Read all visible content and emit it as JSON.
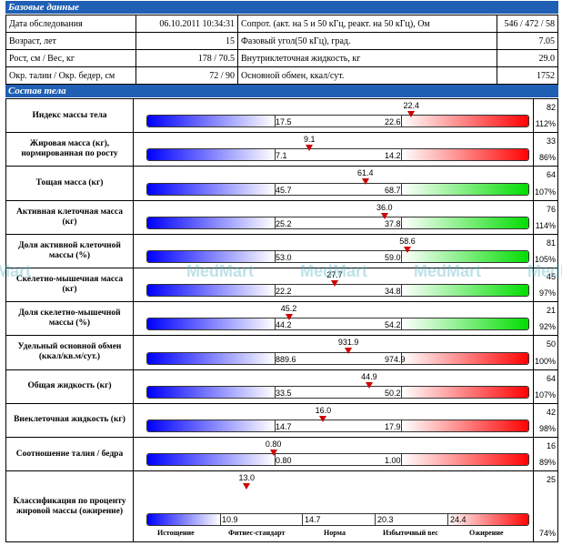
{
  "base_header": "Базовые данные",
  "base": [
    {
      "l1": "Дата обследования",
      "v1": "06.10.2011 10:34:31",
      "l2": "Сопрот. (акт. на 5 и 50 кГц, реакт. на 50 кГц), Ом",
      "v2": "546 / 472 / 58"
    },
    {
      "l1": "Возраст, лет",
      "v1": "15",
      "l2": "Фазовый угол(50 кГц), град.",
      "v2": "7.05"
    },
    {
      "l1": "Рост, см / Вес, кг",
      "v1": "178 / 70.5",
      "l2": "Внутриклеточная жидкость, кг",
      "v2": "29.0"
    },
    {
      "l1": "Окр. талии / Окр. бедер, см",
      "v1": "72 / 90",
      "l2": "Основной обмен, ккал/сут.",
      "v2": "1752"
    }
  ],
  "comp_header": "Состав тела",
  "rows": [
    {
      "label": "Индекс массы тела",
      "value": "22.4",
      "low": "17.5",
      "high": "22.6",
      "n1": "82",
      "n2": "112%",
      "pos": 0.69,
      "color": "red"
    },
    {
      "label": "Жировая масса (кг), нормированная по росту",
      "value": "9.1",
      "low": "7.1",
      "high": "14.2",
      "n1": "33",
      "n2": "86%",
      "pos": 0.43,
      "color": "red"
    },
    {
      "label": "Тощая масса (кг)",
      "value": "61.4",
      "low": "45.7",
      "high": "68.7",
      "n1": "64",
      "n2": "107%",
      "pos": 0.57,
      "color": "green"
    },
    {
      "label": "Активная клеточная масса (кг)",
      "value": "36.0",
      "low": "25.2",
      "high": "37.8",
      "n1": "76",
      "n2": "114%",
      "pos": 0.62,
      "color": "green"
    },
    {
      "label": "Доля активной клеточной массы (%)",
      "value": "58.6",
      "low": "53.0",
      "high": "59.0",
      "n1": "81",
      "n2": "105%",
      "pos": 0.68,
      "color": "green"
    },
    {
      "label": "Скелетно-мышечная масса (кг)",
      "value": "27.7",
      "low": "22.2",
      "high": "34.8",
      "n1": "45",
      "n2": "97%",
      "pos": 0.49,
      "color": "green"
    },
    {
      "label": "Доля скелетно-мышечной массы (%)",
      "value": "45.2",
      "low": "44.2",
      "high": "54.2",
      "n1": "21",
      "n2": "92%",
      "pos": 0.37,
      "color": "green"
    },
    {
      "label": "Удельный основной обмен (ккал/кв.м/сут.)",
      "value": "931.9",
      "low": "889.6",
      "high": "974.9",
      "n1": "50",
      "n2": "100%",
      "pos": 0.52,
      "color": "red"
    },
    {
      "label": "Общая жидкость (кг)",
      "value": "44.9",
      "low": "33.5",
      "high": "50.2",
      "n1": "64",
      "n2": "107%",
      "pos": 0.58,
      "color": "red"
    },
    {
      "label": "Внеклеточная жидкость (кг)",
      "value": "16.0",
      "low": "14.7",
      "high": "17.9",
      "n1": "42",
      "n2": "98%",
      "pos": 0.46,
      "color": "red"
    },
    {
      "label": "Соотношение талия / бедра",
      "value": "0.80",
      "low": "0.80",
      "high": "1.00",
      "n1": "16",
      "n2": "89%",
      "pos": 0.33,
      "color": "red"
    }
  ],
  "classification": {
    "label": "Классификация по проценту жировой массы (ожирение)",
    "value": "13.0",
    "n1": "25",
    "n2": "74%",
    "pos": 0.26,
    "thresholds": [
      "10.9",
      "14.7",
      "20.3",
      "24.4"
    ],
    "categories": [
      "Истощение",
      "Фитнес-стандарт",
      "Норма",
      "Избыточный вес",
      "Ожирение"
    ]
  },
  "watermark": "MedMart"
}
